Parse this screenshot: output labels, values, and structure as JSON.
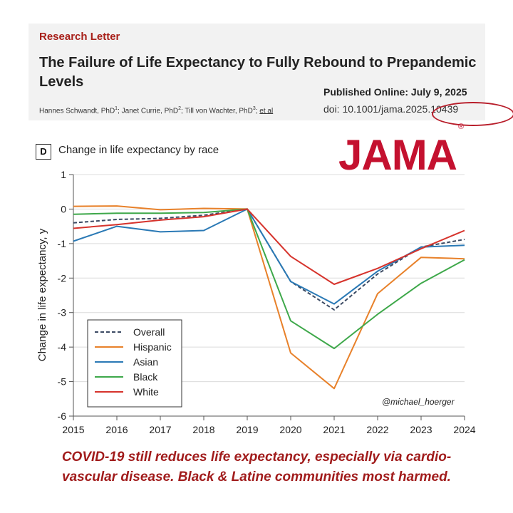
{
  "header": {
    "section": "Research Letter",
    "title": "The Failure of Life Expectancy to Fully Rebound to Prepandemic Levels",
    "authors": [
      {
        "name": "Hannes Schwandt, PhD",
        "sup": "1"
      },
      {
        "name": "Janet Currie, PhD",
        "sup": "2"
      },
      {
        "name": "Till von Wachter, PhD",
        "sup": "3"
      }
    ],
    "et_al": "et al",
    "published_label": "Published Online: ",
    "published_date": "July 9, 2025",
    "doi": "doi: 10.1001/jama.2025.10439"
  },
  "panel_letter": "D",
  "logo": {
    "text": "JAMA",
    "mark": "®"
  },
  "handle": "@michael_hoerger",
  "caption": {
    "line1": "COVID-19 still reduces life expectancy, especially via cardio-",
    "line2": "vascular disease. Black & Latine communities most harmed."
  },
  "colors": {
    "brand_red": "#c4112f",
    "caption_red": "#a11c1c",
    "overall": "#3b4a63",
    "hispanic": "#e8812a",
    "asian": "#2a79b5",
    "black": "#3ea84a",
    "white": "#d6332c"
  },
  "chart_data": {
    "type": "line",
    "title": "Change in life expectancy by race",
    "xlabel": "",
    "ylabel": "Change in life expectancy, y",
    "x": [
      2015,
      2016,
      2017,
      2018,
      2019,
      2020,
      2021,
      2022,
      2023,
      2024
    ],
    "ylim": [
      -6,
      1
    ],
    "yticks": [
      1,
      0,
      -1,
      -2,
      -3,
      -4,
      -5,
      -6
    ],
    "grid": "horizontal",
    "legend_position": "bottom-left",
    "series": [
      {
        "name": "Overall",
        "style": "dashed",
        "color": "#3b4a63",
        "values": [
          -0.4,
          -0.3,
          -0.27,
          -0.18,
          0,
          -2.1,
          -2.92,
          -1.88,
          -1.1,
          -0.88
        ]
      },
      {
        "name": "Hispanic",
        "style": "solid",
        "color": "#e8812a",
        "values": [
          0.08,
          0.09,
          -0.02,
          0.02,
          0,
          -4.17,
          -5.2,
          -2.45,
          -1.4,
          -1.44
        ]
      },
      {
        "name": "Asian",
        "style": "solid",
        "color": "#2a79b5",
        "values": [
          -0.93,
          -0.5,
          -0.66,
          -0.62,
          0,
          -2.1,
          -2.75,
          -1.8,
          -1.1,
          -1.05
        ]
      },
      {
        "name": "Black",
        "style": "solid",
        "color": "#3ea84a",
        "values": [
          -0.15,
          -0.12,
          -0.12,
          -0.1,
          0,
          -3.24,
          -4.04,
          -3.05,
          -2.15,
          -1.47
        ]
      },
      {
        "name": "White",
        "style": "solid",
        "color": "#d6332c",
        "values": [
          -0.56,
          -0.45,
          -0.32,
          -0.22,
          0,
          -1.37,
          -2.18,
          -1.72,
          -1.15,
          -0.62
        ]
      }
    ]
  }
}
